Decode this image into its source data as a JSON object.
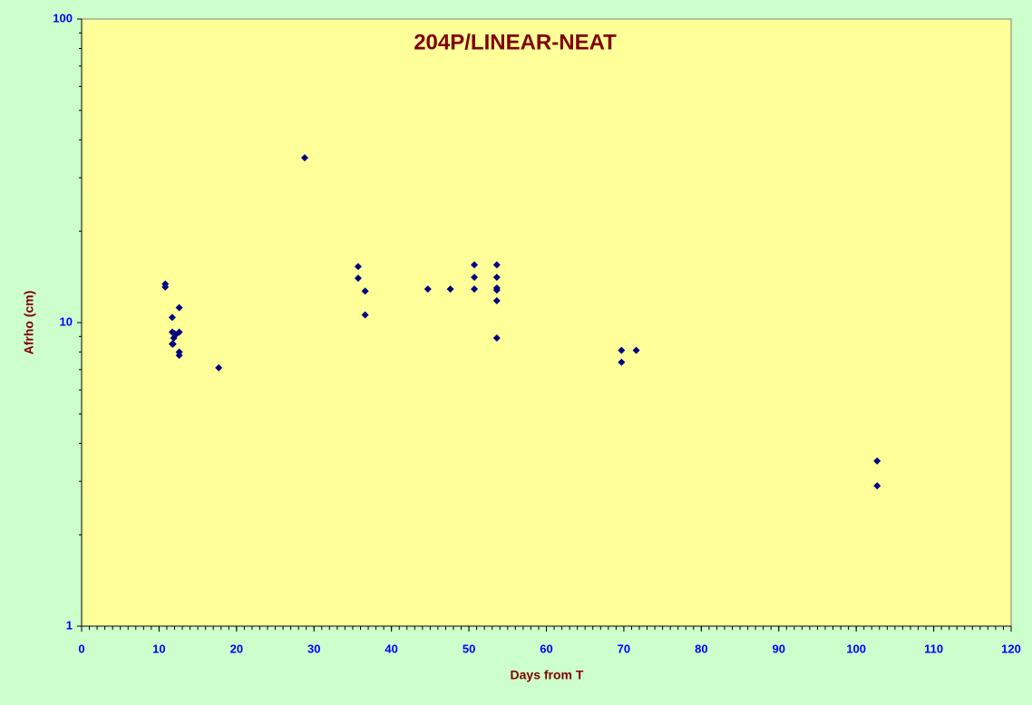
{
  "chart_data": {
    "type": "scatter",
    "title": "204P/LINEAR-NEAT",
    "x_label": "Days from T",
    "y_label": "Afrho (cm)",
    "y_log": true,
    "y_minor_ticks": true,
    "x_minor_step": 1,
    "xlim": [
      0,
      120
    ],
    "xticks": [
      0,
      10,
      20,
      30,
      40,
      50,
      60,
      70,
      80,
      90,
      100,
      110,
      120
    ],
    "ylim": [
      1,
      100
    ],
    "yticks": [
      1,
      10,
      100
    ],
    "series": [
      {
        "color": "#000080",
        "x": [
          10.8,
          10.8,
          11.7,
          11.7,
          11.7,
          12.1,
          12.0,
          11.9,
          11.8,
          12.6,
          12.6,
          12.6,
          12.6,
          17.7,
          28.8,
          35.7,
          35.7,
          36.6,
          36.6,
          44.7,
          47.6,
          50.7,
          50.7,
          50.7,
          53.6,
          53.6,
          53.6,
          53.6,
          53.6,
          53.6,
          69.7,
          69.7,
          71.6,
          102.7,
          102.7
        ],
        "values": [
          13.4,
          13.1,
          10.4,
          9.3,
          8.5,
          9.1,
          9.2,
          8.9,
          8.5,
          11.2,
          9.3,
          8.0,
          7.8,
          7.1,
          34.9,
          15.3,
          14.0,
          12.7,
          10.6,
          12.9,
          12.9,
          15.5,
          14.1,
          12.9,
          15.5,
          14.1,
          13.0,
          12.8,
          11.8,
          8.9,
          8.1,
          7.4,
          8.1,
          3.5,
          2.9
        ]
      }
    ]
  }
}
